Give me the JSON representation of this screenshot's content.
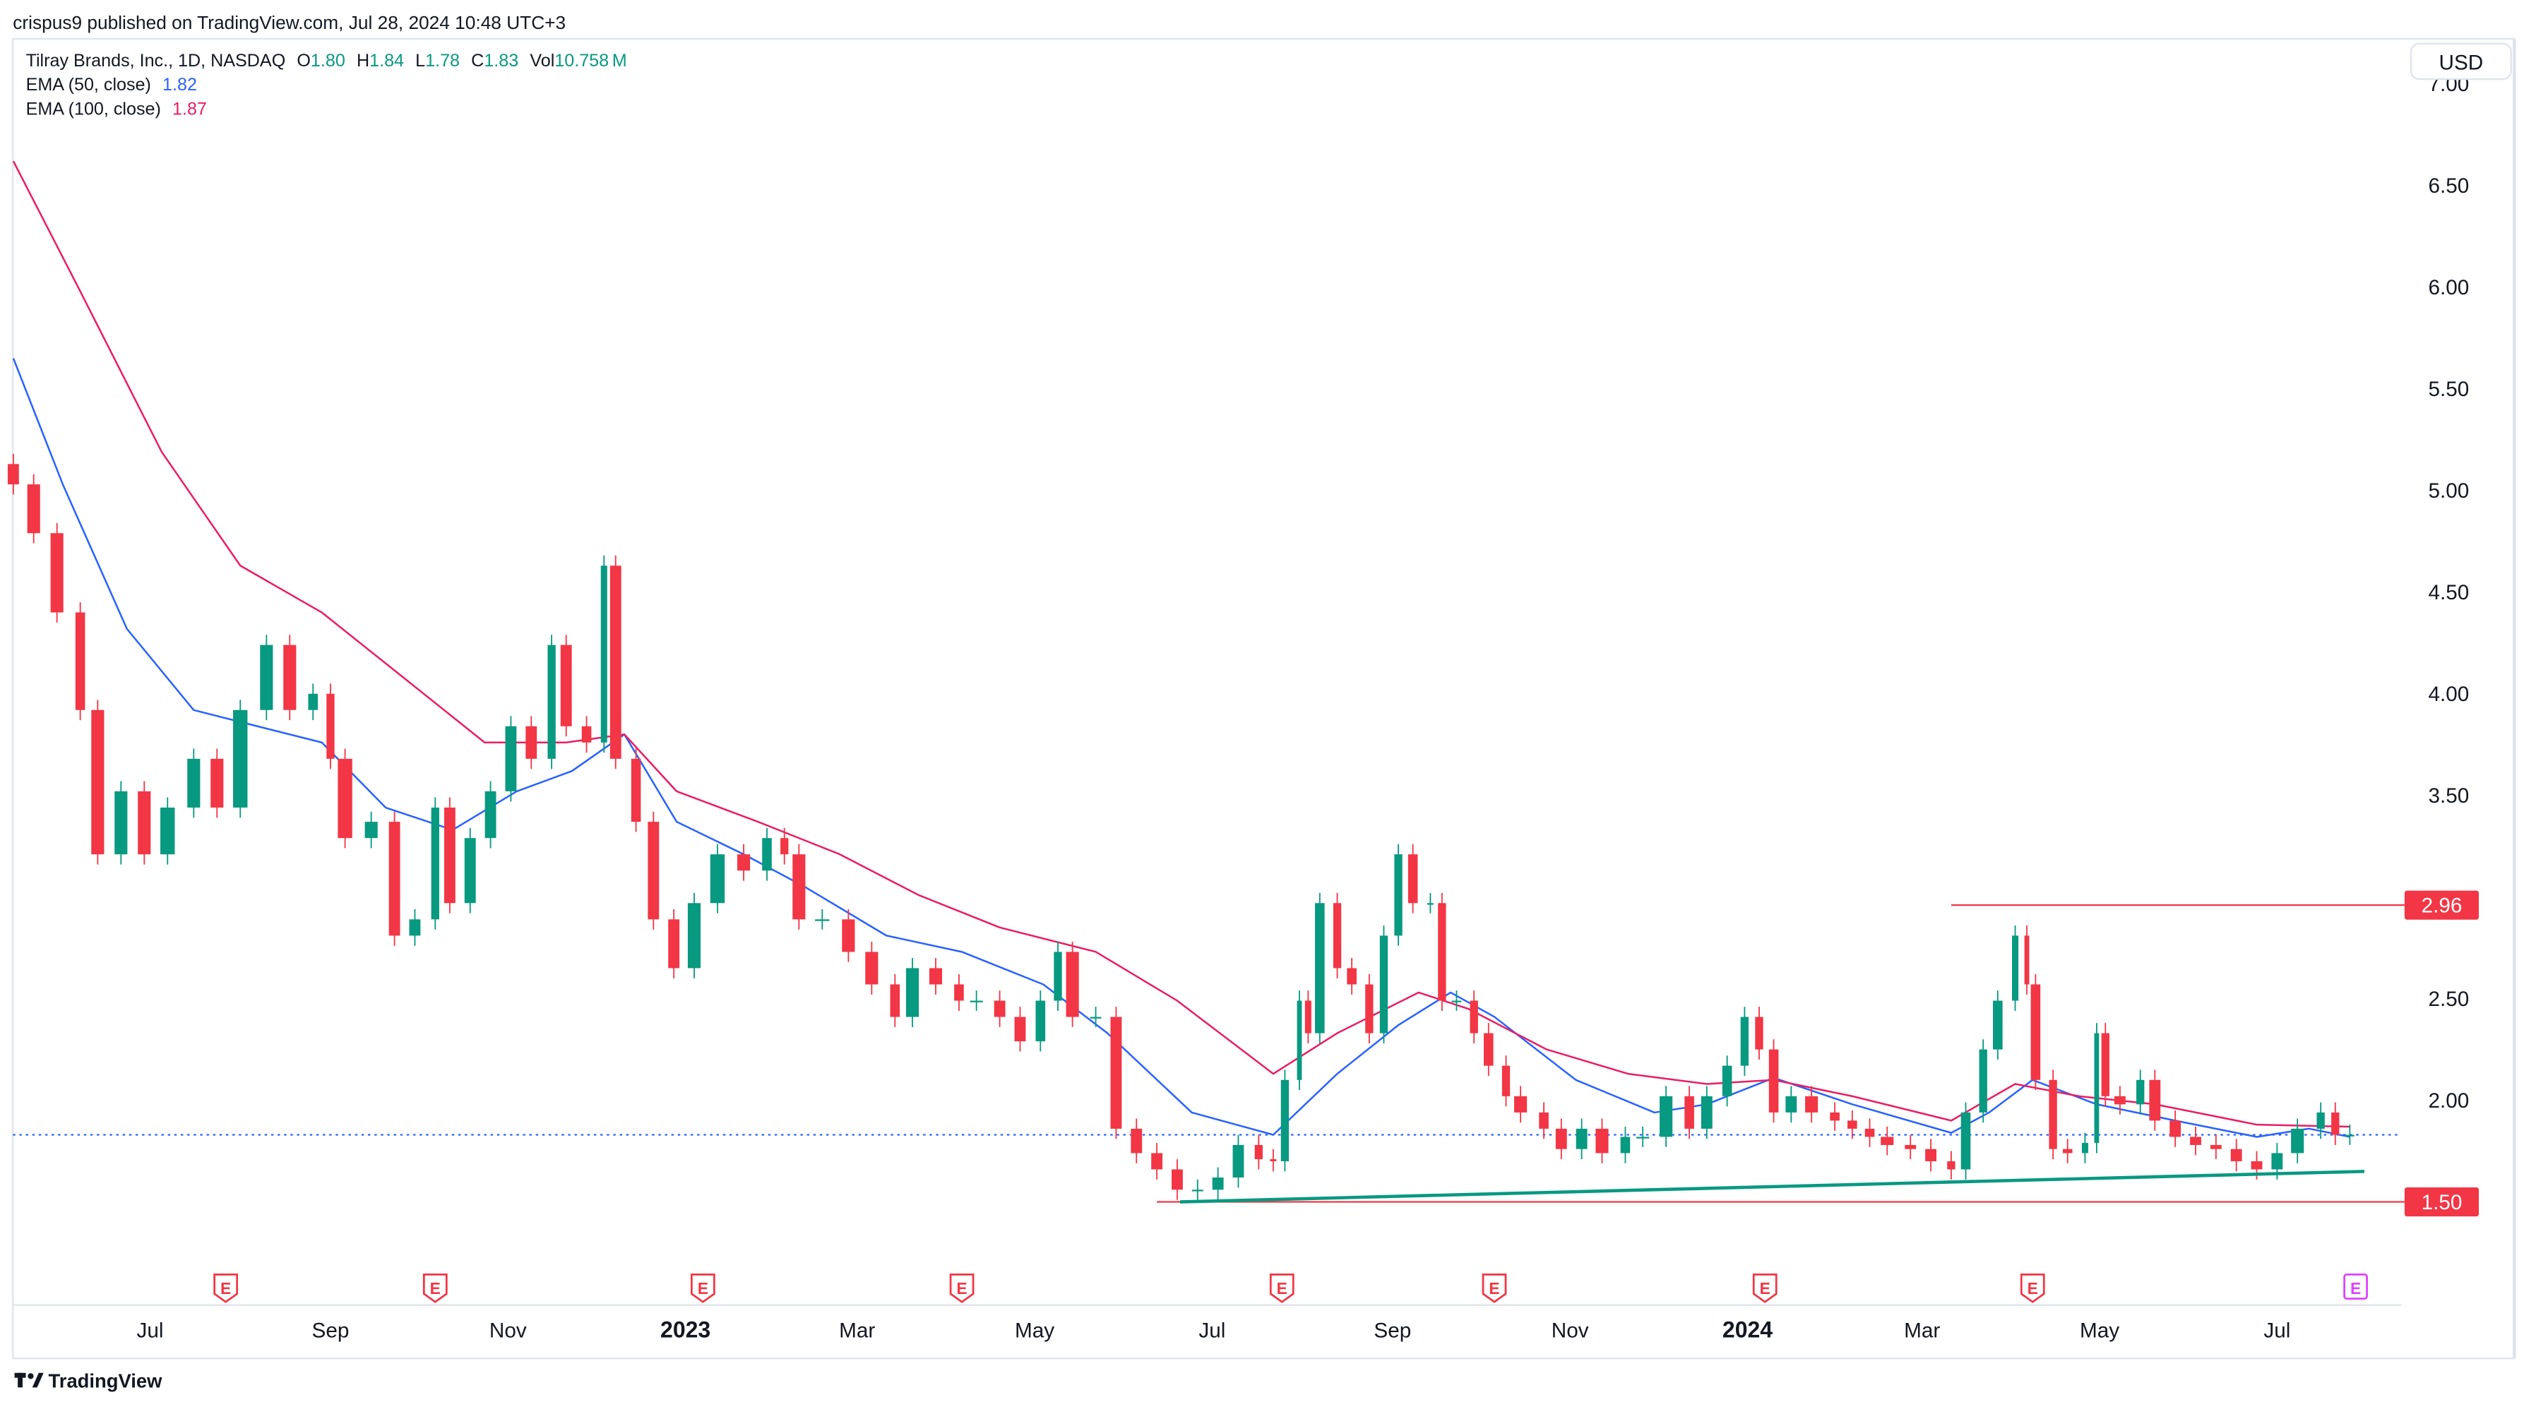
{
  "header": {
    "publisher_line": "crispus9 published on TradingView.com, Jul 28, 2024 10:48 UTC+3"
  },
  "legend": {
    "symbol": "Tilray Brands, Inc., 1D, NASDAQ",
    "o_label": "O",
    "o": "1.80",
    "h_label": "H",
    "h": "1.84",
    "l_label": "L",
    "l": "1.78",
    "c_label": "C",
    "c": "1.83",
    "vol_label": "Vol",
    "vol": "10.758",
    "vol_unit": "M",
    "ema50_label": "EMA (50, close)",
    "ema50_value": "1.82",
    "ema100_label": "EMA (100, close)",
    "ema100_value": "1.87"
  },
  "currency_button": "USD",
  "footer": {
    "logo_text": "TradingView"
  },
  "colors": {
    "up": "#089981",
    "down": "#F23645",
    "ema50": "#2962FF",
    "ema100": "#E91E63",
    "level_line": "#F23645",
    "trend_line": "#089981",
    "earnings_past": "#F23645",
    "earnings_upcoming": "#E040FB"
  },
  "chart_data": {
    "type": "candlestick",
    "title": "",
    "xlabel": "",
    "ylabel": "",
    "ylim": [
      1.2,
      7.2
    ],
    "y_ticks": [
      "7.00",
      "6.50",
      "6.00",
      "5.50",
      "5.00",
      "4.50",
      "4.00",
      "3.50",
      "2.50",
      "2.00"
    ],
    "x_ticks": [
      {
        "label": "Jul",
        "date": "2022-07-01",
        "bold": false
      },
      {
        "label": "Sep",
        "date": "2022-09-01",
        "bold": false
      },
      {
        "label": "Nov",
        "date": "2022-11-01",
        "bold": false
      },
      {
        "label": "2023",
        "date": "2023-01-01",
        "bold": true
      },
      {
        "label": "Mar",
        "date": "2023-03-01",
        "bold": false
      },
      {
        "label": "May",
        "date": "2023-05-01",
        "bold": false
      },
      {
        "label": "Jul",
        "date": "2023-07-01",
        "bold": false
      },
      {
        "label": "Sep",
        "date": "2023-09-01",
        "bold": false
      },
      {
        "label": "Nov",
        "date": "2023-11-01",
        "bold": false
      },
      {
        "label": "2024",
        "date": "2024-01-01",
        "bold": true
      },
      {
        "label": "Mar",
        "date": "2024-03-01",
        "bold": false
      },
      {
        "label": "May",
        "date": "2024-05-01",
        "bold": false
      },
      {
        "label": "Jul",
        "date": "2024-07-01",
        "bold": false
      }
    ],
    "grid": false,
    "closes": [
      [
        "2022-05-15",
        5.03
      ],
      [
        "2022-05-22",
        4.79
      ],
      [
        "2022-05-30",
        4.4
      ],
      [
        "2022-06-07",
        3.92
      ],
      [
        "2022-06-13",
        3.21
      ],
      [
        "2022-06-21",
        3.52
      ],
      [
        "2022-06-29",
        3.21
      ],
      [
        "2022-07-07",
        3.44
      ],
      [
        "2022-07-16",
        3.68
      ],
      [
        "2022-07-24",
        3.44
      ],
      [
        "2022-08-01",
        3.92
      ],
      [
        "2022-08-10",
        4.24
      ],
      [
        "2022-08-18",
        3.92
      ],
      [
        "2022-08-26",
        4.0
      ],
      [
        "2022-09-01",
        3.68
      ],
      [
        "2022-09-06",
        3.29
      ],
      [
        "2022-09-15",
        3.37
      ],
      [
        "2022-09-23",
        2.81
      ],
      [
        "2022-09-30",
        2.89
      ],
      [
        "2022-10-07",
        3.44
      ],
      [
        "2022-10-12",
        2.97
      ],
      [
        "2022-10-19",
        3.29
      ],
      [
        "2022-10-26",
        3.52
      ],
      [
        "2022-11-02",
        3.84
      ],
      [
        "2022-11-09",
        3.68
      ],
      [
        "2022-11-16",
        4.24
      ],
      [
        "2022-11-21",
        3.84
      ],
      [
        "2022-11-28",
        3.76
      ],
      [
        "2022-12-04",
        4.63
      ],
      [
        "2022-12-08",
        3.68
      ],
      [
        "2022-12-15",
        3.37
      ],
      [
        "2022-12-21",
        2.89
      ],
      [
        "2022-12-28",
        2.65
      ],
      [
        "2023-01-04",
        2.97
      ],
      [
        "2023-01-12",
        3.21
      ],
      [
        "2023-01-21",
        3.13
      ],
      [
        "2023-01-29",
        3.29
      ],
      [
        "2023-02-04",
        3.21
      ],
      [
        "2023-02-09",
        2.89
      ],
      [
        "2023-02-17",
        2.89
      ],
      [
        "2023-02-26",
        2.73
      ],
      [
        "2023-03-06",
        2.57
      ],
      [
        "2023-03-14",
        2.41
      ],
      [
        "2023-03-20",
        2.65
      ],
      [
        "2023-03-28",
        2.57
      ],
      [
        "2023-04-05",
        2.49
      ],
      [
        "2023-04-11",
        2.49
      ],
      [
        "2023-04-19",
        2.41
      ],
      [
        "2023-04-26",
        2.29
      ],
      [
        "2023-05-03",
        2.49
      ],
      [
        "2023-05-09",
        2.73
      ],
      [
        "2023-05-14",
        2.41
      ],
      [
        "2023-05-22",
        2.41
      ],
      [
        "2023-05-29",
        1.86
      ],
      [
        "2023-06-05",
        1.74
      ],
      [
        "2023-06-12",
        1.66
      ],
      [
        "2023-06-19",
        1.56
      ],
      [
        "2023-06-26",
        1.56
      ],
      [
        "2023-07-03",
        1.62
      ],
      [
        "2023-07-10",
        1.78
      ],
      [
        "2023-07-17",
        1.71
      ],
      [
        "2023-07-22",
        1.7
      ],
      [
        "2023-07-26",
        2.1
      ],
      [
        "2023-07-31",
        2.49
      ],
      [
        "2023-08-03",
        2.33
      ],
      [
        "2023-08-07",
        2.97
      ],
      [
        "2023-08-13",
        2.65
      ],
      [
        "2023-08-18",
        2.57
      ],
      [
        "2023-08-24",
        2.33
      ],
      [
        "2023-08-29",
        2.81
      ],
      [
        "2023-09-03",
        3.21
      ],
      [
        "2023-09-08",
        2.97
      ],
      [
        "2023-09-14",
        2.97
      ],
      [
        "2023-09-18",
        2.49
      ],
      [
        "2023-09-23",
        2.49
      ],
      [
        "2023-09-29",
        2.33
      ],
      [
        "2023-10-04",
        2.17
      ],
      [
        "2023-10-10",
        2.02
      ],
      [
        "2023-10-15",
        1.94
      ],
      [
        "2023-10-23",
        1.86
      ],
      [
        "2023-10-29",
        1.76
      ],
      [
        "2023-11-05",
        1.86
      ],
      [
        "2023-11-12",
        1.74
      ],
      [
        "2023-11-20",
        1.82
      ],
      [
        "2023-11-26",
        1.82
      ],
      [
        "2023-12-04",
        2.02
      ],
      [
        "2023-12-12",
        1.86
      ],
      [
        "2023-12-18",
        2.02
      ],
      [
        "2023-12-25",
        2.17
      ],
      [
        "2023-12-31",
        2.41
      ],
      [
        "2024-01-05",
        2.25
      ],
      [
        "2024-01-10",
        1.94
      ],
      [
        "2024-01-16",
        2.02
      ],
      [
        "2024-01-23",
        1.94
      ],
      [
        "2024-01-31",
        1.9
      ],
      [
        "2024-02-06",
        1.86
      ],
      [
        "2024-02-12",
        1.82
      ],
      [
        "2024-02-18",
        1.78
      ],
      [
        "2024-02-26",
        1.76
      ],
      [
        "2024-03-04",
        1.7
      ],
      [
        "2024-03-11",
        1.66
      ],
      [
        "2024-03-16",
        1.94
      ],
      [
        "2024-03-22",
        2.25
      ],
      [
        "2024-03-27",
        2.49
      ],
      [
        "2024-04-02",
        2.81
      ],
      [
        "2024-04-06",
        2.57
      ],
      [
        "2024-04-09",
        2.1
      ],
      [
        "2024-04-15",
        1.76
      ],
      [
        "2024-04-20",
        1.74
      ],
      [
        "2024-04-26",
        1.79
      ],
      [
        "2024-04-30",
        2.33
      ],
      [
        "2024-05-03",
        2.02
      ],
      [
        "2024-05-08",
        1.98
      ],
      [
        "2024-05-15",
        2.1
      ],
      [
        "2024-05-20",
        1.9
      ],
      [
        "2024-05-27",
        1.82
      ],
      [
        "2024-06-03",
        1.78
      ],
      [
        "2024-06-10",
        1.76
      ],
      [
        "2024-06-17",
        1.7
      ],
      [
        "2024-06-24",
        1.66
      ],
      [
        "2024-07-01",
        1.74
      ],
      [
        "2024-07-08",
        1.86
      ],
      [
        "2024-07-16",
        1.94
      ],
      [
        "2024-07-21",
        1.83
      ],
      [
        "2024-07-26",
        1.83
      ]
    ],
    "series": [
      {
        "name": "EMA (50, close)",
        "points": [
          [
            "2022-05-15",
            5.65
          ],
          [
            "2022-06-01",
            5.03
          ],
          [
            "2022-06-23",
            4.32
          ],
          [
            "2022-07-16",
            3.92
          ],
          [
            "2022-08-07",
            3.84
          ],
          [
            "2022-08-29",
            3.76
          ],
          [
            "2022-09-20",
            3.44
          ],
          [
            "2022-10-13",
            3.33
          ],
          [
            "2022-11-04",
            3.52
          ],
          [
            "2022-11-23",
            3.62
          ],
          [
            "2022-12-11",
            3.8
          ],
          [
            "2022-12-29",
            3.37
          ],
          [
            "2023-01-21",
            3.21
          ],
          [
            "2023-02-11",
            3.05
          ],
          [
            "2023-03-11",
            2.81
          ],
          [
            "2023-04-06",
            2.73
          ],
          [
            "2023-05-04",
            2.57
          ],
          [
            "2023-05-26",
            2.33
          ],
          [
            "2023-06-24",
            1.94
          ],
          [
            "2023-07-22",
            1.83
          ],
          [
            "2023-08-13",
            2.13
          ],
          [
            "2023-09-03",
            2.37
          ],
          [
            "2023-09-21",
            2.53
          ],
          [
            "2023-10-06",
            2.41
          ],
          [
            "2023-11-03",
            2.1
          ],
          [
            "2023-11-30",
            1.94
          ],
          [
            "2023-12-18",
            1.98
          ],
          [
            "2024-01-10",
            2.11
          ],
          [
            "2024-02-06",
            1.98
          ],
          [
            "2024-03-11",
            1.84
          ],
          [
            "2024-03-24",
            1.94
          ],
          [
            "2024-04-08",
            2.1
          ],
          [
            "2024-04-30",
            1.98
          ],
          [
            "2024-05-27",
            1.9
          ],
          [
            "2024-06-24",
            1.82
          ],
          [
            "2024-07-12",
            1.86
          ],
          [
            "2024-07-26",
            1.82
          ]
        ]
      },
      {
        "name": "EMA (100, close)",
        "points": [
          [
            "2022-05-15",
            6.62
          ],
          [
            "2022-06-07",
            5.98
          ],
          [
            "2022-07-05",
            5.19
          ],
          [
            "2022-08-01",
            4.63
          ],
          [
            "2022-08-29",
            4.4
          ],
          [
            "2022-09-26",
            4.08
          ],
          [
            "2022-10-24",
            3.76
          ],
          [
            "2022-11-21",
            3.76
          ],
          [
            "2022-12-11",
            3.8
          ],
          [
            "2022-12-29",
            3.52
          ],
          [
            "2023-01-26",
            3.37
          ],
          [
            "2023-02-23",
            3.21
          ],
          [
            "2023-03-22",
            3.01
          ],
          [
            "2023-04-19",
            2.85
          ],
          [
            "2023-05-22",
            2.73
          ],
          [
            "2023-06-19",
            2.49
          ],
          [
            "2023-07-22",
            2.13
          ],
          [
            "2023-08-13",
            2.33
          ],
          [
            "2023-09-10",
            2.53
          ],
          [
            "2023-09-27",
            2.45
          ],
          [
            "2023-10-24",
            2.25
          ],
          [
            "2023-11-21",
            2.13
          ],
          [
            "2023-12-18",
            2.08
          ],
          [
            "2024-01-10",
            2.1
          ],
          [
            "2024-02-06",
            2.02
          ],
          [
            "2024-03-11",
            1.9
          ],
          [
            "2024-04-02",
            2.08
          ],
          [
            "2024-04-24",
            2.02
          ],
          [
            "2024-05-20",
            1.98
          ],
          [
            "2024-06-24",
            1.88
          ],
          [
            "2024-07-26",
            1.87
          ]
        ]
      }
    ],
    "last_price": 1.83,
    "levels": [
      {
        "label": "2.96",
        "price": 2.96,
        "from": "2024-03-11"
      },
      {
        "label": "1.50",
        "price": 1.5,
        "from": "2023-06-12"
      }
    ],
    "trend_line": {
      "from": [
        "2023-06-20",
        1.5
      ],
      "to": [
        "2024-07-31",
        1.65
      ]
    },
    "earnings": [
      {
        "label": "E",
        "date": "2022-07-27",
        "upcoming": false
      },
      {
        "label": "E",
        "date": "2022-10-07",
        "upcoming": false
      },
      {
        "label": "E",
        "date": "2023-01-07",
        "upcoming": false
      },
      {
        "label": "E",
        "date": "2023-04-06",
        "upcoming": false
      },
      {
        "label": "E",
        "date": "2023-07-25",
        "upcoming": false
      },
      {
        "label": "E",
        "date": "2023-10-06",
        "upcoming": false
      },
      {
        "label": "E",
        "date": "2024-01-07",
        "upcoming": false
      },
      {
        "label": "E",
        "date": "2024-04-08",
        "upcoming": false
      },
      {
        "label": "E",
        "date": "2024-07-28",
        "upcoming": true
      }
    ]
  }
}
